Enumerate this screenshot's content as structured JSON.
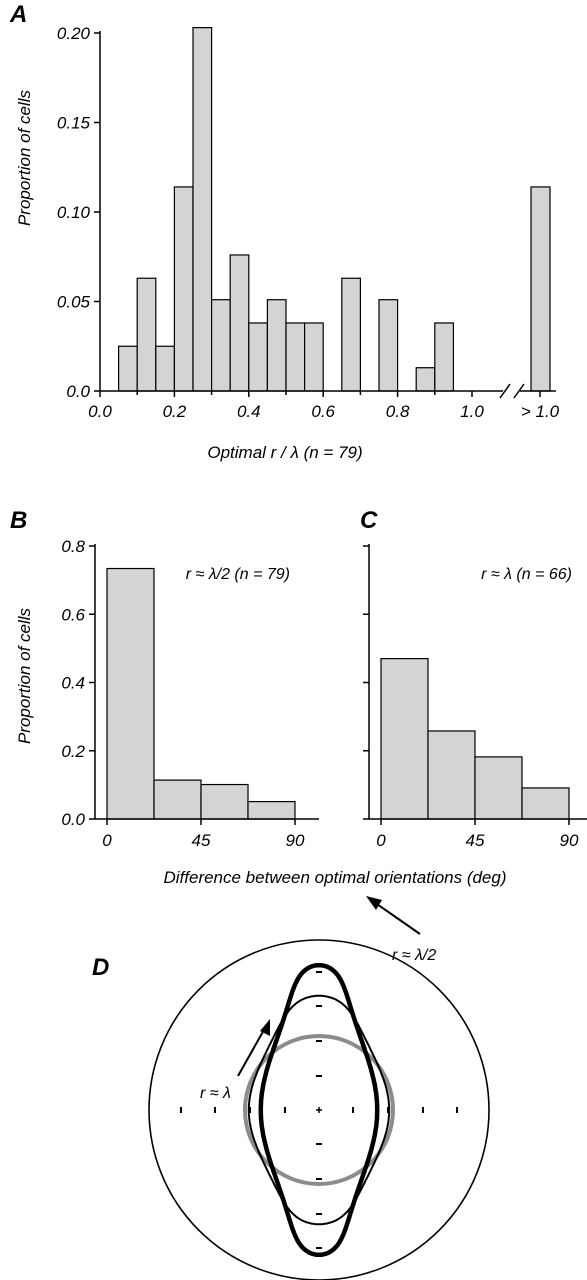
{
  "chart_data": [
    {
      "panel": "A",
      "type": "bar",
      "ylabel": "Proportion of cells",
      "xlabel": "Optimal r / λ (n = 79)",
      "ylim": [
        0,
        0.2
      ],
      "yticks": [
        "0.0",
        "0.05",
        "0.10",
        "0.15",
        "0.20"
      ],
      "xticks": [
        "0.0",
        "0.2",
        "0.4",
        "0.6",
        "0.8",
        "1.0",
        "> 1.0"
      ],
      "bin_width": 0.05,
      "bin_starts": [
        0.05,
        0.1,
        0.15,
        0.2,
        0.25,
        0.3,
        0.35,
        0.4,
        0.45,
        0.5,
        0.55,
        0.65,
        0.75,
        0.85,
        0.9
      ],
      "values": [
        0.025,
        0.063,
        0.025,
        0.114,
        0.203,
        0.051,
        0.076,
        0.038,
        0.051,
        0.038,
        0.038,
        0.063,
        0.051,
        0.013,
        0.038
      ],
      "overflow_label": "> 1.0",
      "overflow_value": 0.114
    },
    {
      "panel": "B",
      "type": "bar",
      "ylabel": "Proportion of cells",
      "annotation": "r ≈ λ/2 (n = 79)",
      "ylim": [
        0,
        0.8
      ],
      "yticks": [
        "0.0",
        "0.2",
        "0.4",
        "0.6",
        "0.8"
      ],
      "xticks": [
        "0",
        "45",
        "90"
      ],
      "bin_edges": [
        0,
        22.5,
        45,
        67.5,
        90
      ],
      "values": [
        0.734,
        0.114,
        0.101,
        0.051
      ]
    },
    {
      "panel": "C",
      "type": "bar",
      "annotation": "r ≈ λ (n = 66)",
      "ylim": [
        0,
        0.8
      ],
      "xticks": [
        "0",
        "45",
        "90"
      ],
      "bin_edges": [
        0,
        22.5,
        45,
        67.5,
        90
      ],
      "values": [
        0.47,
        0.258,
        0.182,
        0.091
      ]
    },
    {
      "panel": "D",
      "type": "polar",
      "labels": [
        "r ≈ λ/2",
        "r ≈ λ"
      ]
    }
  ],
  "shared_xlabel": "Difference between optimal orientations (deg)",
  "colors": {
    "bar_fill": "#d4d4d4",
    "stroke": "#000000",
    "reference_circle": "#8c8c8c"
  }
}
